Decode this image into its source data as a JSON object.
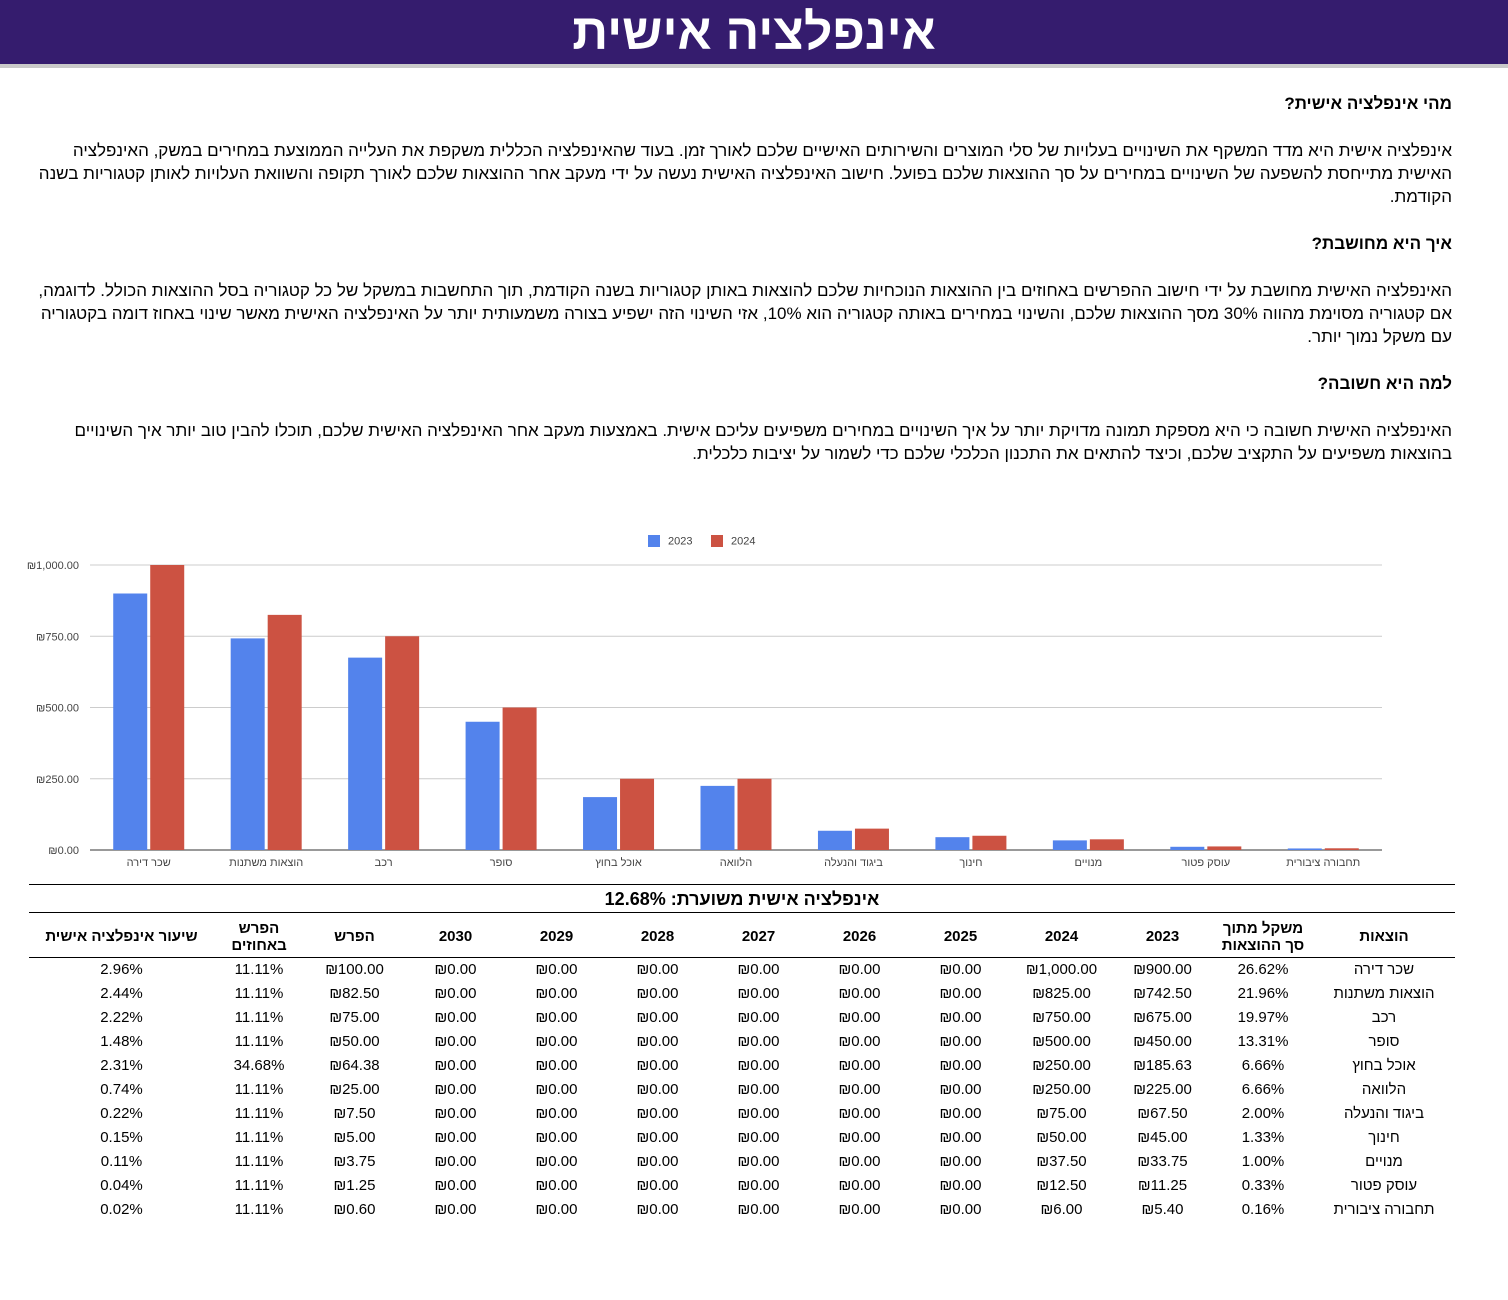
{
  "header": {
    "title": "אינפלציה אישית"
  },
  "intro": {
    "q1": "מהי אינפלציה אישית?",
    "p1": "אינפלציה אישית היא מדד המשקף את השינויים בעלויות של סלי המוצרים והשירותים האישיים שלכם לאורך זמן. בעוד שהאינפלציה הכללית משקפת את העלייה הממוצעת במחירים במשק, האינפלציה האישית מתייחסת להשפעה של השינויים במחירים על סך ההוצאות שלכם בפועל. חישוב האינפלציה האישית נעשה על ידי מעקב אחר ההוצאות שלכם לאורך תקופה והשוואת העלויות לאותן קטגוריות בשנה הקודמת.",
    "q2": "איך היא מחושבת?",
    "p2": "האינפלציה האישית מחושבת על ידי חישוב ההפרשים באחוזים בין ההוצאות הנוכחיות שלכם להוצאות באותן קטגוריות בשנה הקודמת, תוך התחשבות במשקל של כל קטגוריה בסל ההוצאות הכולל. לדוגמה, אם קטגוריה מסוימת מהווה 30% מסך ההוצאות שלכם, והשינוי במחירים באותה קטגוריה הוא 10%, אזי השינוי הזה ישפיע בצורה משמעותית יותר על האינפלציה האישית מאשר שינוי באחוז דומה בקטגוריה עם משקל נמוך יותר.",
    "q3": "למה היא חשובה?",
    "p3": "האינפלציה האישית חשובה כי היא מספקת תמונה מדויקת יותר על איך השינויים במחירים משפיעים עליכם אישית. באמצעות מעקב אחר האינפלציה האישית שלכם, תוכלו להבין טוב יותר איך השינויים בהוצאות משפיעים על התקציב שלכם, וכיצד להתאים את התכנון הכלכלי שלכם כדי לשמור על יציבות כלכלית."
  },
  "chart_data": {
    "type": "bar",
    "title": "",
    "xlabel": "",
    "ylabel": "",
    "ylim": [
      0,
      1000
    ],
    "yticks": [
      0,
      250,
      500,
      750,
      1000
    ],
    "ytick_labels": [
      "₪0.00",
      "₪250.00",
      "₪500.00",
      "₪750.00",
      "₪1,000.00"
    ],
    "grid": true,
    "legend": "top-center",
    "categories": [
      "שכר דירה",
      "הוצאות משתנות",
      "רכב",
      "סופר",
      "אוכל בחוץ",
      "הלוואה",
      "ביגוד והנעלה",
      "חינוך",
      "מנויים",
      "עוסק פטור",
      "תחבורה ציבורית"
    ],
    "series": [
      {
        "name": "2023",
        "color": "#5383ec",
        "values": [
          900,
          742.5,
          675,
          450,
          185.63,
          225,
          67.5,
          45,
          33.75,
          11.25,
          5.4
        ]
      },
      {
        "name": "2024",
        "color": "#cc5242",
        "values": [
          1000,
          825,
          750,
          500,
          250,
          250,
          75,
          50,
          37.5,
          12.5,
          6
        ]
      }
    ]
  },
  "table": {
    "title": "אינפלציה אישית משוערת: 12.68%",
    "headers": [
      {
        "l1": "הוצאות",
        "l2": ""
      },
      {
        "l1": "משקל מתוך",
        "l2": "סך ההוצאות"
      },
      {
        "l1": "2023",
        "l2": ""
      },
      {
        "l1": "2024",
        "l2": ""
      },
      {
        "l1": "2025",
        "l2": ""
      },
      {
        "l1": "2026",
        "l2": ""
      },
      {
        "l1": "2027",
        "l2": ""
      },
      {
        "l1": "2028",
        "l2": ""
      },
      {
        "l1": "2029",
        "l2": ""
      },
      {
        "l1": "2030",
        "l2": ""
      },
      {
        "l1": "הפרש",
        "l2": ""
      },
      {
        "l1": "הפרש",
        "l2": "באחוזים"
      },
      {
        "l1": "שיעור אינפלציה אישית",
        "l2": ""
      }
    ],
    "rows": [
      [
        "שכר דירה",
        "26.62%",
        "₪900.00",
        "₪1,000.00",
        "₪0.00",
        "₪0.00",
        "₪0.00",
        "₪0.00",
        "₪0.00",
        "₪0.00",
        "₪100.00",
        "11.11%",
        "2.96%"
      ],
      [
        "הוצאות משתנות",
        "21.96%",
        "₪742.50",
        "₪825.00",
        "₪0.00",
        "₪0.00",
        "₪0.00",
        "₪0.00",
        "₪0.00",
        "₪0.00",
        "₪82.50",
        "11.11%",
        "2.44%"
      ],
      [
        "רכב",
        "19.97%",
        "₪675.00",
        "₪750.00",
        "₪0.00",
        "₪0.00",
        "₪0.00",
        "₪0.00",
        "₪0.00",
        "₪0.00",
        "₪75.00",
        "11.11%",
        "2.22%"
      ],
      [
        "סופר",
        "13.31%",
        "₪450.00",
        "₪500.00",
        "₪0.00",
        "₪0.00",
        "₪0.00",
        "₪0.00",
        "₪0.00",
        "₪0.00",
        "₪50.00",
        "11.11%",
        "1.48%"
      ],
      [
        "אוכל בחוץ",
        "6.66%",
        "₪185.63",
        "₪250.00",
        "₪0.00",
        "₪0.00",
        "₪0.00",
        "₪0.00",
        "₪0.00",
        "₪0.00",
        "₪64.38",
        "34.68%",
        "2.31%"
      ],
      [
        "הלוואה",
        "6.66%",
        "₪225.00",
        "₪250.00",
        "₪0.00",
        "₪0.00",
        "₪0.00",
        "₪0.00",
        "₪0.00",
        "₪0.00",
        "₪25.00",
        "11.11%",
        "0.74%"
      ],
      [
        "ביגוד והנעלה",
        "2.00%",
        "₪67.50",
        "₪75.00",
        "₪0.00",
        "₪0.00",
        "₪0.00",
        "₪0.00",
        "₪0.00",
        "₪0.00",
        "₪7.50",
        "11.11%",
        "0.22%"
      ],
      [
        "חינוך",
        "1.33%",
        "₪45.00",
        "₪50.00",
        "₪0.00",
        "₪0.00",
        "₪0.00",
        "₪0.00",
        "₪0.00",
        "₪0.00",
        "₪5.00",
        "11.11%",
        "0.15%"
      ],
      [
        "מנויים",
        "1.00%",
        "₪33.75",
        "₪37.50",
        "₪0.00",
        "₪0.00",
        "₪0.00",
        "₪0.00",
        "₪0.00",
        "₪0.00",
        "₪3.75",
        "11.11%",
        "0.11%"
      ],
      [
        "עוסק פטור",
        "0.33%",
        "₪11.25",
        "₪12.50",
        "₪0.00",
        "₪0.00",
        "₪0.00",
        "₪0.00",
        "₪0.00",
        "₪0.00",
        "₪1.25",
        "11.11%",
        "0.04%"
      ],
      [
        "תחבורה ציבורית",
        "0.16%",
        "₪5.40",
        "₪6.00",
        "₪0.00",
        "₪0.00",
        "₪0.00",
        "₪0.00",
        "₪0.00",
        "₪0.00",
        "₪0.60",
        "11.11%",
        "0.02%"
      ]
    ]
  }
}
